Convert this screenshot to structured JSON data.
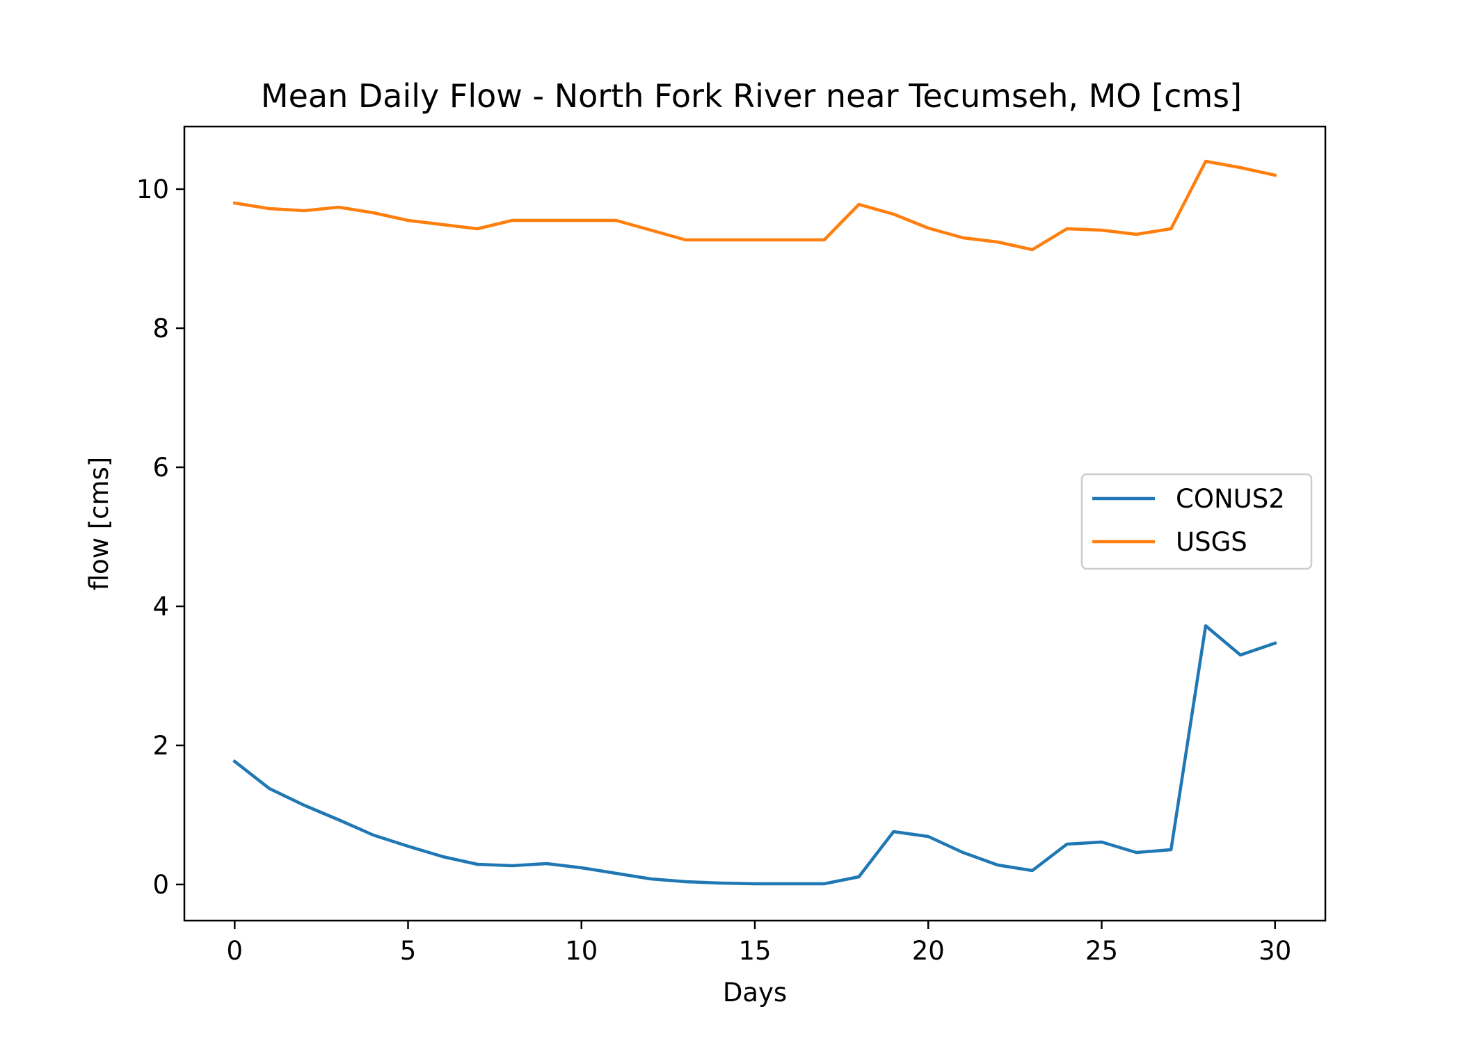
{
  "chart_data": {
    "type": "line",
    "title": "Mean Daily Flow - North Fork River near Tecumseh, MO [cms]",
    "xlabel": "Days",
    "ylabel": "flow [cms]",
    "xlim": [
      -1.45,
      31.45
    ],
    "ylim": [
      -0.52,
      10.9
    ],
    "xticks": [
      0,
      5,
      10,
      15,
      20,
      25,
      30
    ],
    "yticks": [
      0,
      2,
      4,
      6,
      8,
      10
    ],
    "xtick_labels": [
      "0",
      "5",
      "10",
      "15",
      "20",
      "25",
      "30"
    ],
    "ytick_labels": [
      "0",
      "2",
      "4",
      "6",
      "8",
      "10"
    ],
    "grid": false,
    "legend_position": "center-right",
    "x": [
      0,
      1,
      2,
      3,
      4,
      5,
      6,
      7,
      8,
      9,
      10,
      11,
      12,
      13,
      14,
      15,
      16,
      17,
      18,
      19,
      20,
      21,
      22,
      23,
      24,
      25,
      26,
      27,
      28,
      29,
      30
    ],
    "series": [
      {
        "name": "CONUS2",
        "color": "#1f77b4",
        "values": [
          1.77,
          1.38,
          1.14,
          0.93,
          0.71,
          0.55,
          0.4,
          0.29,
          0.27,
          0.3,
          0.24,
          0.16,
          0.08,
          0.04,
          0.02,
          0.01,
          0.01,
          0.01,
          0.11,
          0.76,
          0.69,
          0.46,
          0.28,
          0.2,
          0.58,
          0.61,
          0.46,
          0.5,
          3.72,
          3.3,
          3.47
        ]
      },
      {
        "name": "USGS",
        "color": "#ff7f0e",
        "values": [
          9.8,
          9.72,
          9.69,
          9.74,
          9.66,
          9.55,
          9.49,
          9.43,
          9.55,
          9.55,
          9.55,
          9.55,
          9.41,
          9.27,
          9.27,
          9.27,
          9.27,
          9.27,
          9.78,
          9.64,
          9.44,
          9.3,
          9.24,
          9.13,
          9.43,
          9.41,
          9.35,
          9.43,
          10.4,
          10.31,
          10.2
        ]
      }
    ]
  }
}
